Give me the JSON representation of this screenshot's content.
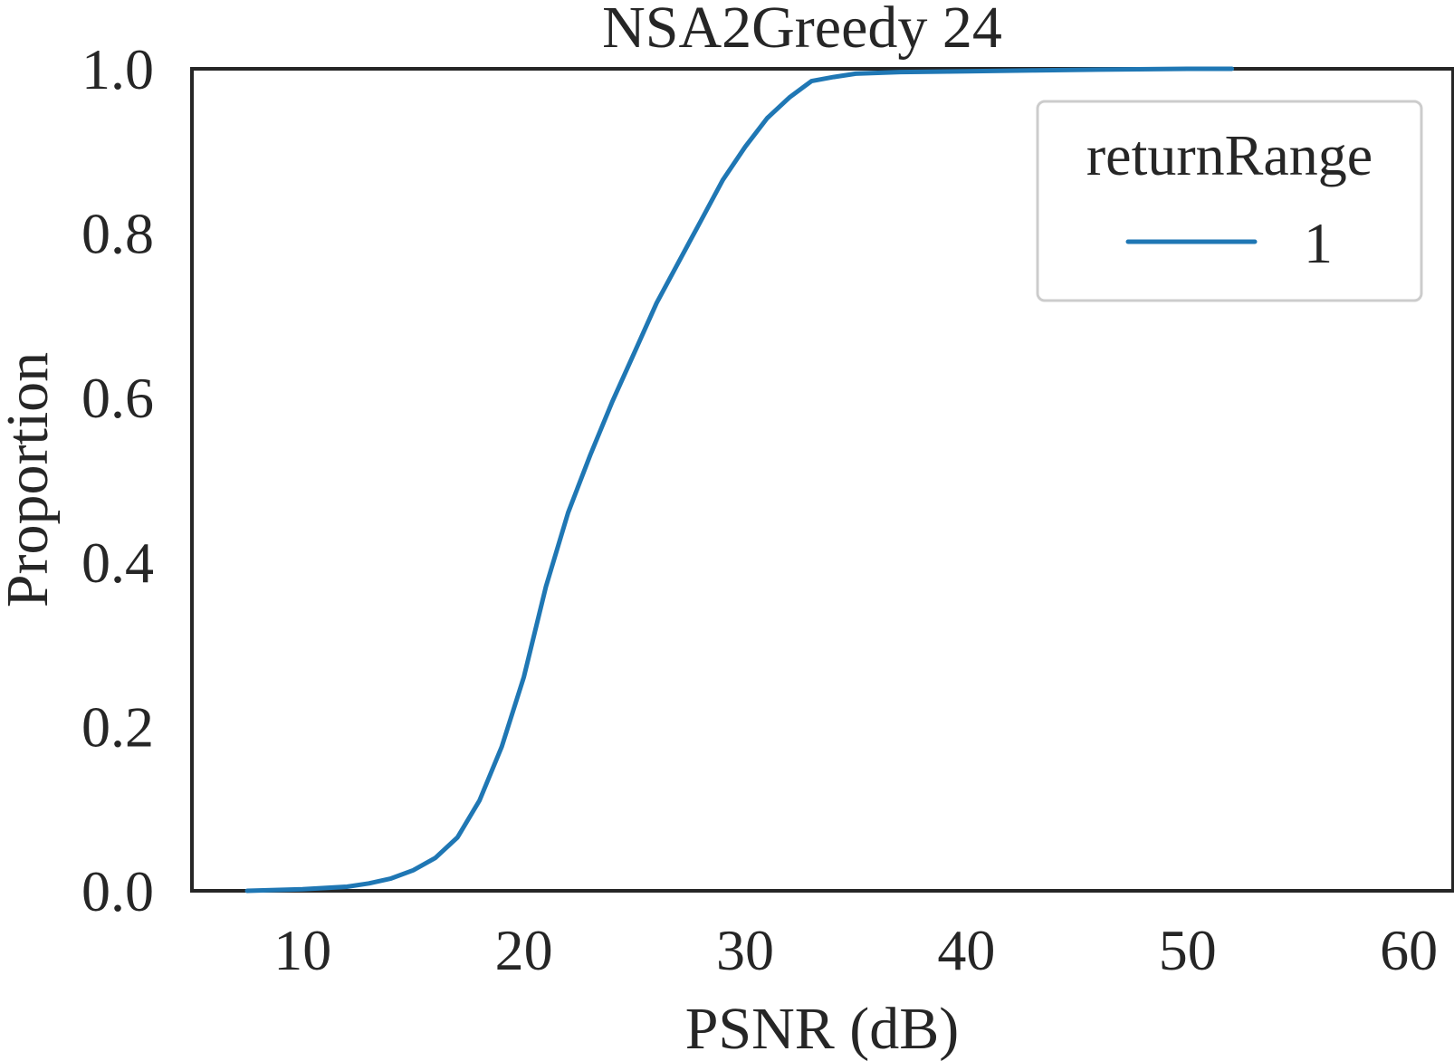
{
  "chart_data": {
    "type": "line",
    "title": "NSA2Greedy 24",
    "xlabel": "PSNR (dB)",
    "ylabel": "Proportion",
    "xlim": [
      5,
      62
    ],
    "ylim": [
      0.0,
      1.0
    ],
    "xticks": [
      10,
      20,
      30,
      40,
      50,
      60
    ],
    "xtick_labels": [
      "10",
      "20",
      "30",
      "40",
      "50",
      "60"
    ],
    "yticks": [
      0.0,
      0.2,
      0.4,
      0.6,
      0.8,
      1.0
    ],
    "ytick_labels": [
      "0.0",
      "0.2",
      "0.4",
      "0.6",
      "0.8",
      "1.0"
    ],
    "grid": false,
    "legend": {
      "title": "returnRange",
      "placement": "top-right",
      "entries": [
        {
          "label": "1",
          "color": "#1f77b4"
        }
      ]
    },
    "series": [
      {
        "name": "1",
        "color": "#1f77b4",
        "x": [
          7.5,
          10,
          12,
          13,
          14,
          15,
          16,
          17,
          18,
          19,
          20,
          21,
          22,
          23,
          24,
          25,
          26,
          27,
          28,
          29,
          30,
          31,
          32,
          33,
          34,
          35,
          37,
          40,
          43,
          46,
          50,
          52
        ],
        "y": [
          0.0,
          0.002,
          0.005,
          0.009,
          0.015,
          0.025,
          0.04,
          0.065,
          0.11,
          0.175,
          0.26,
          0.37,
          0.46,
          0.53,
          0.595,
          0.655,
          0.715,
          0.765,
          0.815,
          0.865,
          0.905,
          0.94,
          0.965,
          0.985,
          0.99,
          0.994,
          0.996,
          0.997,
          0.998,
          0.999,
          1.0,
          1.0
        ]
      }
    ]
  }
}
